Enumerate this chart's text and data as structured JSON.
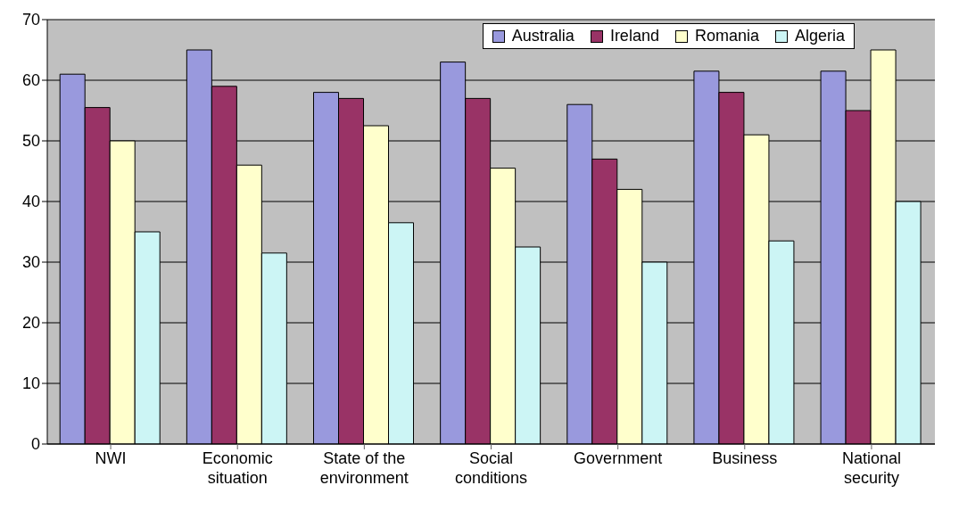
{
  "chart_data": {
    "type": "bar",
    "categories": [
      "NWI",
      "Economic situation",
      "State of the environment",
      "Social conditions",
      "Government",
      "Business",
      "National security"
    ],
    "series": [
      {
        "name": "Australia",
        "color": "#9999dd",
        "values": [
          61,
          65,
          58,
          63,
          56,
          61.5,
          61.5
        ]
      },
      {
        "name": "Ireland",
        "color": "#993366",
        "values": [
          55.5,
          59,
          57,
          57,
          47,
          58,
          55
        ]
      },
      {
        "name": "Romania",
        "color": "#ffffcc",
        "values": [
          50,
          46,
          52.5,
          45.5,
          42,
          51,
          65
        ]
      },
      {
        "name": "Algeria",
        "color": "#ccf5f5",
        "values": [
          35,
          31.5,
          36.5,
          32.5,
          30,
          33.5,
          40
        ]
      }
    ],
    "ylim": [
      0,
      70
    ],
    "yticks": [
      0,
      10,
      20,
      30,
      40,
      50,
      60,
      70
    ],
    "grid": "y",
    "legend": "top right"
  }
}
